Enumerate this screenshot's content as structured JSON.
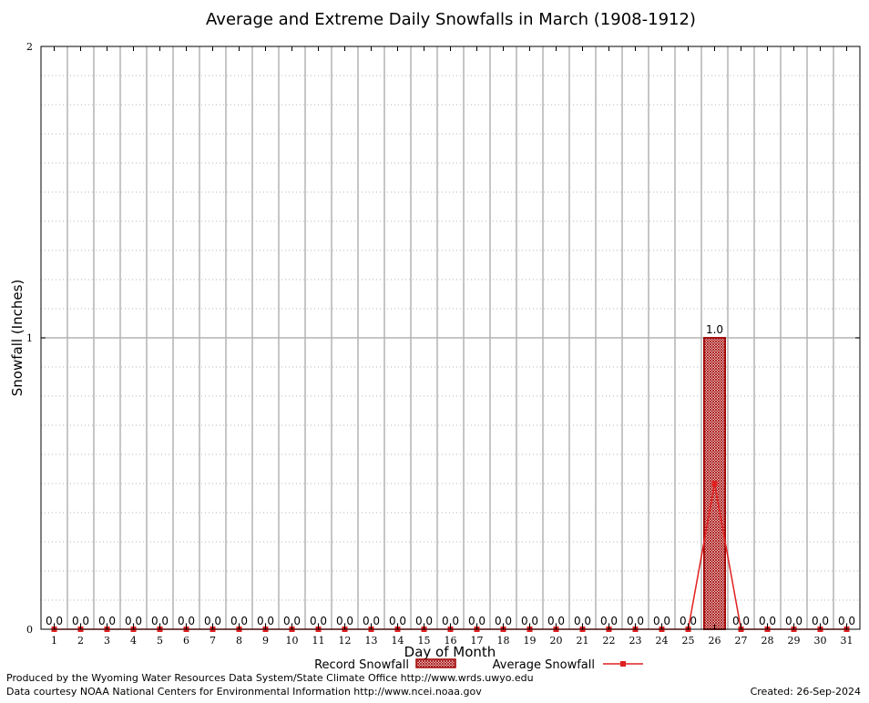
{
  "chart_data": {
    "type": "bar",
    "title": "Average and Extreme Daily Snowfalls in March (1908-1912)",
    "xlabel": "Day of Month",
    "ylabel": "Snowfall (Inches)",
    "ylim": [
      0,
      2
    ],
    "yticks": [
      "0",
      "1",
      "2"
    ],
    "categories": [
      "1",
      "2",
      "3",
      "4",
      "5",
      "6",
      "7",
      "8",
      "9",
      "10",
      "11",
      "12",
      "13",
      "14",
      "15",
      "16",
      "17",
      "18",
      "19",
      "20",
      "21",
      "22",
      "23",
      "24",
      "25",
      "26",
      "27",
      "28",
      "29",
      "30",
      "31"
    ],
    "series": [
      {
        "name": "Record Snowfall",
        "kind": "bar",
        "color": "#a00000",
        "values": [
          0,
          0,
          0,
          0,
          0,
          0,
          0,
          0,
          0,
          0,
          0,
          0,
          0,
          0,
          0,
          0,
          0,
          0,
          0,
          0,
          0,
          0,
          0,
          0,
          0,
          1.0,
          0,
          0,
          0,
          0,
          0
        ]
      },
      {
        "name": "Average Snowfall",
        "kind": "line",
        "color": "#e02020",
        "values": [
          0,
          0,
          0,
          0,
          0,
          0,
          0,
          0,
          0,
          0,
          0,
          0,
          0,
          0,
          0,
          0,
          0,
          0,
          0,
          0,
          0,
          0,
          0,
          0,
          0,
          0.5,
          0,
          0,
          0,
          0,
          0
        ]
      }
    ],
    "data_labels": [
      "0.0",
      "0.0",
      "0.0",
      "0.0",
      "0.0",
      "0.0",
      "0.0",
      "0.0",
      "0.0",
      "0.0",
      "0.0",
      "0.0",
      "0.0",
      "0.0",
      "0.0",
      "0.0",
      "0.0",
      "0.0",
      "0.0",
      "0.0",
      "0.0",
      "0.0",
      "0.0",
      "0.0",
      "0.0",
      "1.0",
      "0.0",
      "0.0",
      "0.0",
      "0.0",
      "0.0"
    ],
    "grid": true,
    "legend_position": "bottom-center"
  },
  "footer": {
    "line1": "Produced by the Wyoming Water Resources Data System/State Climate Office http://www.wrds.uwyo.edu",
    "line2": "Data courtesy NOAA National Centers for Environmental Information http://www.ncei.noaa.gov",
    "created": "Created: 26-Sep-2024"
  }
}
